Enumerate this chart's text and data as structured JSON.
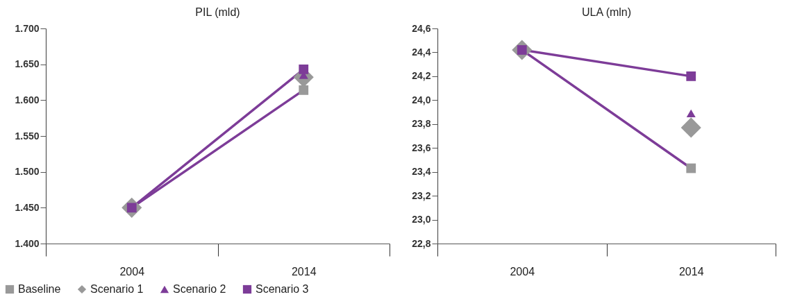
{
  "chart_data": [
    {
      "type": "scatter",
      "title": "PIL (mld)",
      "categories": [
        "2004",
        "2014"
      ],
      "ylim": [
        1400,
        1700
      ],
      "yticks": [
        {
          "value": 1400,
          "label": "1.400"
        },
        {
          "value": 1450,
          "label": "1.450"
        },
        {
          "value": 1500,
          "label": "1.500"
        },
        {
          "value": 1550,
          "label": "1.550"
        },
        {
          "value": 1600,
          "label": "1.600"
        },
        {
          "value": 1650,
          "label": "1.650"
        },
        {
          "value": 1700,
          "label": "1.700"
        }
      ],
      "legend": "bottom left",
      "series": [
        {
          "type": "line",
          "color": "#7d3c98",
          "marker": "none",
          "values": [
            1450,
            1614
          ]
        },
        {
          "type": "line",
          "color": "#7d3c98",
          "marker": "none",
          "values": [
            1450,
            1643
          ]
        },
        {
          "name": "Baseline",
          "color": "#999999",
          "marker": "square",
          "values": [
            null,
            1614
          ]
        },
        {
          "name": "Scenario 1",
          "color": "#999999",
          "marker": "diamond",
          "values": [
            1450,
            1632
          ]
        },
        {
          "name": "Scenario 2",
          "color": "#7d3c98",
          "marker": "triangle",
          "values": [
            null,
            1635
          ]
        },
        {
          "name": "Scenario 3",
          "color": "#7d3c98",
          "marker": "square",
          "values": [
            1450,
            1643
          ]
        }
      ]
    },
    {
      "type": "scatter",
      "title": "ULA (mln)",
      "categories": [
        "2004",
        "2014"
      ],
      "ylim": [
        22.8,
        24.6
      ],
      "yticks": [
        {
          "value": 22.8,
          "label": "22,8"
        },
        {
          "value": 23.0,
          "label": "23,0"
        },
        {
          "value": 23.2,
          "label": "23,2"
        },
        {
          "value": 23.4,
          "label": "23,4"
        },
        {
          "value": 23.6,
          "label": "23,6"
        },
        {
          "value": 23.8,
          "label": "23,8"
        },
        {
          "value": 24.0,
          "label": "24,0"
        },
        {
          "value": 24.2,
          "label": "24,2"
        },
        {
          "value": 24.4,
          "label": "24,4"
        },
        {
          "value": 24.6,
          "label": "24,6"
        }
      ],
      "series": [
        {
          "type": "line",
          "color": "#7d3c98",
          "marker": "none",
          "values": [
            24.42,
            23.43
          ]
        },
        {
          "type": "line",
          "color": "#7d3c98",
          "marker": "none",
          "values": [
            24.42,
            24.2
          ]
        },
        {
          "color": "#999999",
          "marker": "square",
          "values": [
            null,
            23.43
          ]
        },
        {
          "color": "#999999",
          "marker": "diamond",
          "values": [
            24.42,
            23.77
          ]
        },
        {
          "color": "#7d3c98",
          "marker": "triangle",
          "values": [
            null,
            23.89
          ]
        },
        {
          "color": "#7d3c98",
          "marker": "square",
          "values": [
            24.42,
            24.2
          ]
        }
      ]
    }
  ]
}
